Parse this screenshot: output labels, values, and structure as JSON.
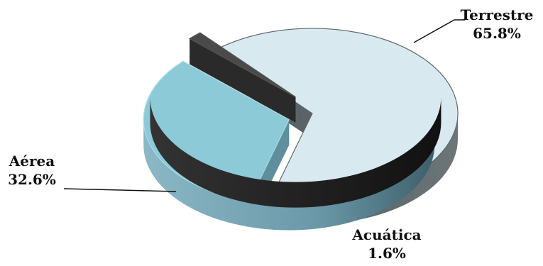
{
  "chart_data": {
    "type": "pie",
    "title": "",
    "slices": [
      {
        "label": "Terrestre",
        "value": 65.8,
        "value_label": "65.8%",
        "color": "#d8eaf0"
      },
      {
        "label": "Aérea",
        "value": 32.6,
        "value_label": "32.6%",
        "color": "#8ccad8"
      },
      {
        "label": "Acuática",
        "value": 1.6,
        "value_label": "1.6%",
        "color": "#4a4a4a"
      }
    ],
    "style": "3d-exploded",
    "legend": "none"
  }
}
